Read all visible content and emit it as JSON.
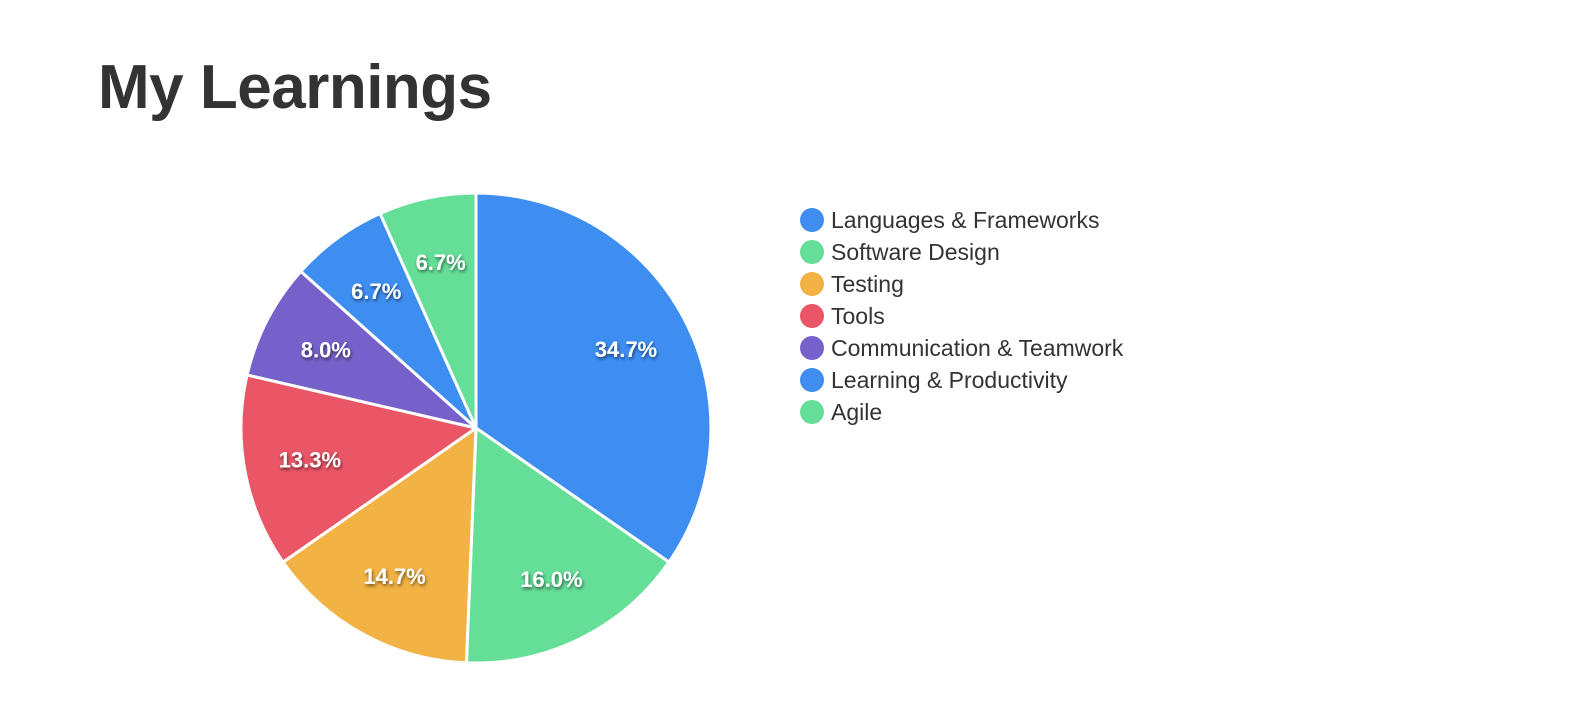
{
  "page": {
    "title": "My Learnings"
  },
  "chart_data": {
    "type": "pie",
    "title": "",
    "start_angle_deg": 0,
    "direction": "clockwise",
    "legend_position": "right",
    "slices": [
      {
        "label": "Languages & Frameworks",
        "value": 34.7,
        "display": "34.7%",
        "color": "#3e8ef2"
      },
      {
        "label": "Software Design",
        "value": 16.0,
        "display": "16.0%",
        "color": "#65de98"
      },
      {
        "label": "Testing",
        "value": 14.7,
        "display": "14.7%",
        "color": "#f2b244"
      },
      {
        "label": "Tools",
        "value": 13.3,
        "display": "13.3%",
        "color": "#eb5667"
      },
      {
        "label": "Communication & Teamwork",
        "value": 8.0,
        "display": "8.0%",
        "color": "#7561c9"
      },
      {
        "label": "Learning & Productivity",
        "value": 6.7,
        "display": "6.7%",
        "color": "#3e8ef2"
      },
      {
        "label": "Agile",
        "value": 6.7,
        "display": "6.7%",
        "color": "#65de98"
      }
    ]
  }
}
